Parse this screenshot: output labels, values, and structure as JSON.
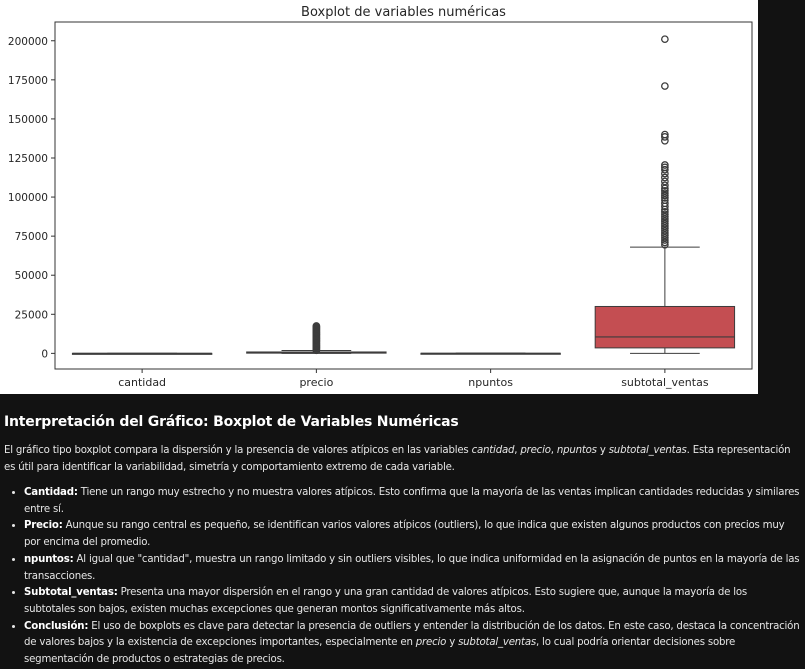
{
  "chart_data": {
    "type": "boxplot",
    "title": "Boxplot de variables numéricas",
    "xlabel": "",
    "ylabel": "",
    "ylim": [
      -10000,
      212000
    ],
    "yticks": [
      0,
      25000,
      50000,
      75000,
      100000,
      125000,
      150000,
      175000,
      200000
    ],
    "ytick_labels": [
      "0",
      "25000",
      "50000",
      "75000",
      "100000",
      "125000",
      "150000",
      "175000",
      "200000"
    ],
    "grid": false,
    "categories": [
      "cantidad",
      "precio",
      "npuntos",
      "subtotal_ventas"
    ],
    "boxes": [
      {
        "name": "cantidad",
        "q1": 1,
        "median": 2,
        "q3": 3,
        "whisker_low": 1,
        "whisker_high": 5,
        "outliers": [],
        "color": "#4c72b0"
      },
      {
        "name": "precio",
        "q1": 150,
        "median": 400,
        "q3": 900,
        "whisker_low": 10,
        "whisker_high": 1800,
        "outliers": [
          2000,
          2500,
          3000,
          3500,
          4000,
          4500,
          5000,
          5500,
          6000,
          6500,
          7000,
          7500,
          8000,
          8500,
          9000,
          9500,
          10000,
          10500,
          11000,
          11500,
          12000,
          12500,
          13000,
          13500,
          14000,
          14500,
          15000,
          15500,
          16000,
          16500,
          17000,
          17500
        ],
        "color": "#dd8452"
      },
      {
        "name": "npuntos",
        "q1": 5,
        "median": 20,
        "q3": 60,
        "whisker_low": 0,
        "whisker_high": 150,
        "outliers": [],
        "color": "#55a868"
      },
      {
        "name": "subtotal_ventas",
        "q1": 3500,
        "median": 10500,
        "q3": 30000,
        "whisker_low": 0,
        "whisker_high": 68000,
        "outliers": [
          69500,
          71000,
          72500,
          74000,
          75500,
          77000,
          78500,
          80000,
          81500,
          83000,
          84500,
          86000,
          87500,
          89000,
          90500,
          92000,
          94000,
          96000,
          98000,
          99500,
          101000,
          102500,
          104000,
          105500,
          107500,
          110000,
          112500,
          115000,
          117500,
          119000,
          120500,
          136000,
          138500,
          140000,
          171000,
          201000
        ],
        "color": "#c44e52"
      }
    ]
  },
  "report": {
    "title": "Interpretación del Gráfico: Boxplot de Variables Numéricas",
    "intro": {
      "t1": "El gráfico tipo boxplot compara la dispersión y la presencia de valores atípicos en las variables ",
      "v1": "cantidad",
      "t2": ", ",
      "v2": "precio",
      "t3": ", ",
      "v3": "npuntos",
      "t4": " y ",
      "v4": "subtotal_ventas",
      "t5": ". Esta representación es útil para identificar la variabilidad, simetría y comportamiento extremo de cada variable."
    },
    "bullets": {
      "cantidad": {
        "label": "Cantidad:",
        "text": " Tiene un rango muy estrecho y no muestra valores atípicos. Esto confirma que la mayoría de las ventas implican cantidades reducidas y similares entre sí."
      },
      "precio": {
        "label": "Precio:",
        "text": " Aunque su rango central es pequeño, se identifican varios valores atípicos (outliers), lo que indica que existen algunos productos con precios muy por encima del promedio."
      },
      "npuntos": {
        "label": "npuntos:",
        "text": " Al igual que \"cantidad\", muestra un rango limitado y sin outliers visibles, lo que indica uniformidad en la asignación de puntos en la mayoría de las transacciones."
      },
      "subtotal": {
        "label": "Subtotal_ventas:",
        "text": " Presenta una mayor dispersión en el rango y una gran cantidad de valores atípicos. Esto sugiere que, aunque la mayoría de los subtotales son bajos, existen muchas excepciones que generan montos significativamente más altos."
      },
      "conclusion": {
        "label": "Conclusión:",
        "t1": " El uso de boxplots es clave para detectar la presencia de outliers y entender la distribución de los datos. En este caso, destaca la concentración de valores bajos y la existencia de excepciones importantes, especialmente en ",
        "v1": "precio",
        "t2": " y ",
        "v2": "subtotal_ventas",
        "t3": ", lo cual podría orientar decisiones sobre segmentación de productos o estrategias de precios."
      }
    }
  }
}
